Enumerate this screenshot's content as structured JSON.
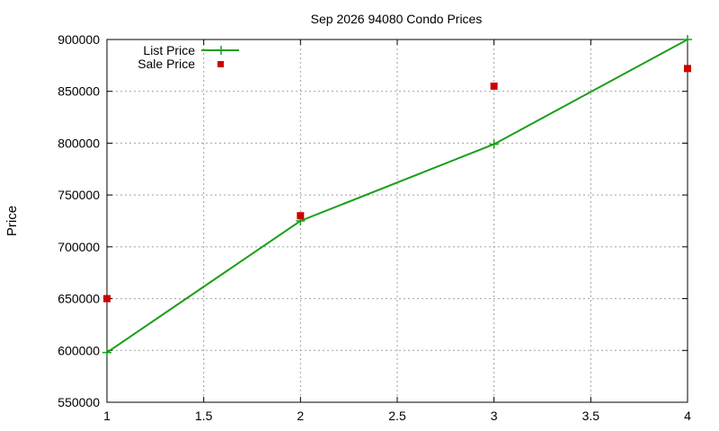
{
  "chart_data": {
    "type": "line",
    "title": "Sep 2026 94080 Condo Prices",
    "xlabel": "",
    "ylabel": "Price",
    "xlim": [
      1,
      4
    ],
    "ylim": [
      550000,
      900000
    ],
    "x_ticks": [
      1,
      1.5,
      2,
      2.5,
      3,
      3.5,
      4
    ],
    "x_tick_labels": [
      "1",
      "1.5",
      "2",
      "2.5",
      "3",
      "3.5",
      "4"
    ],
    "y_ticks": [
      550000,
      600000,
      650000,
      700000,
      750000,
      800000,
      850000,
      900000
    ],
    "y_tick_labels": [
      "550000",
      "600000",
      "650000",
      "700000",
      "750000",
      "800000",
      "850000",
      "900000"
    ],
    "grid": true,
    "legend_position": "top-left",
    "series": [
      {
        "name": "List Price",
        "style": "line-with-plus-markers",
        "color": "#1a9e1a",
        "x": [
          1,
          2,
          3,
          4
        ],
        "y": [
          598000,
          725000,
          799000,
          900000
        ]
      },
      {
        "name": "Sale Price",
        "style": "square-markers",
        "color": "#cc0000",
        "x": [
          1,
          2,
          3,
          4
        ],
        "y": [
          650000,
          730000,
          855000,
          872000
        ]
      }
    ]
  }
}
